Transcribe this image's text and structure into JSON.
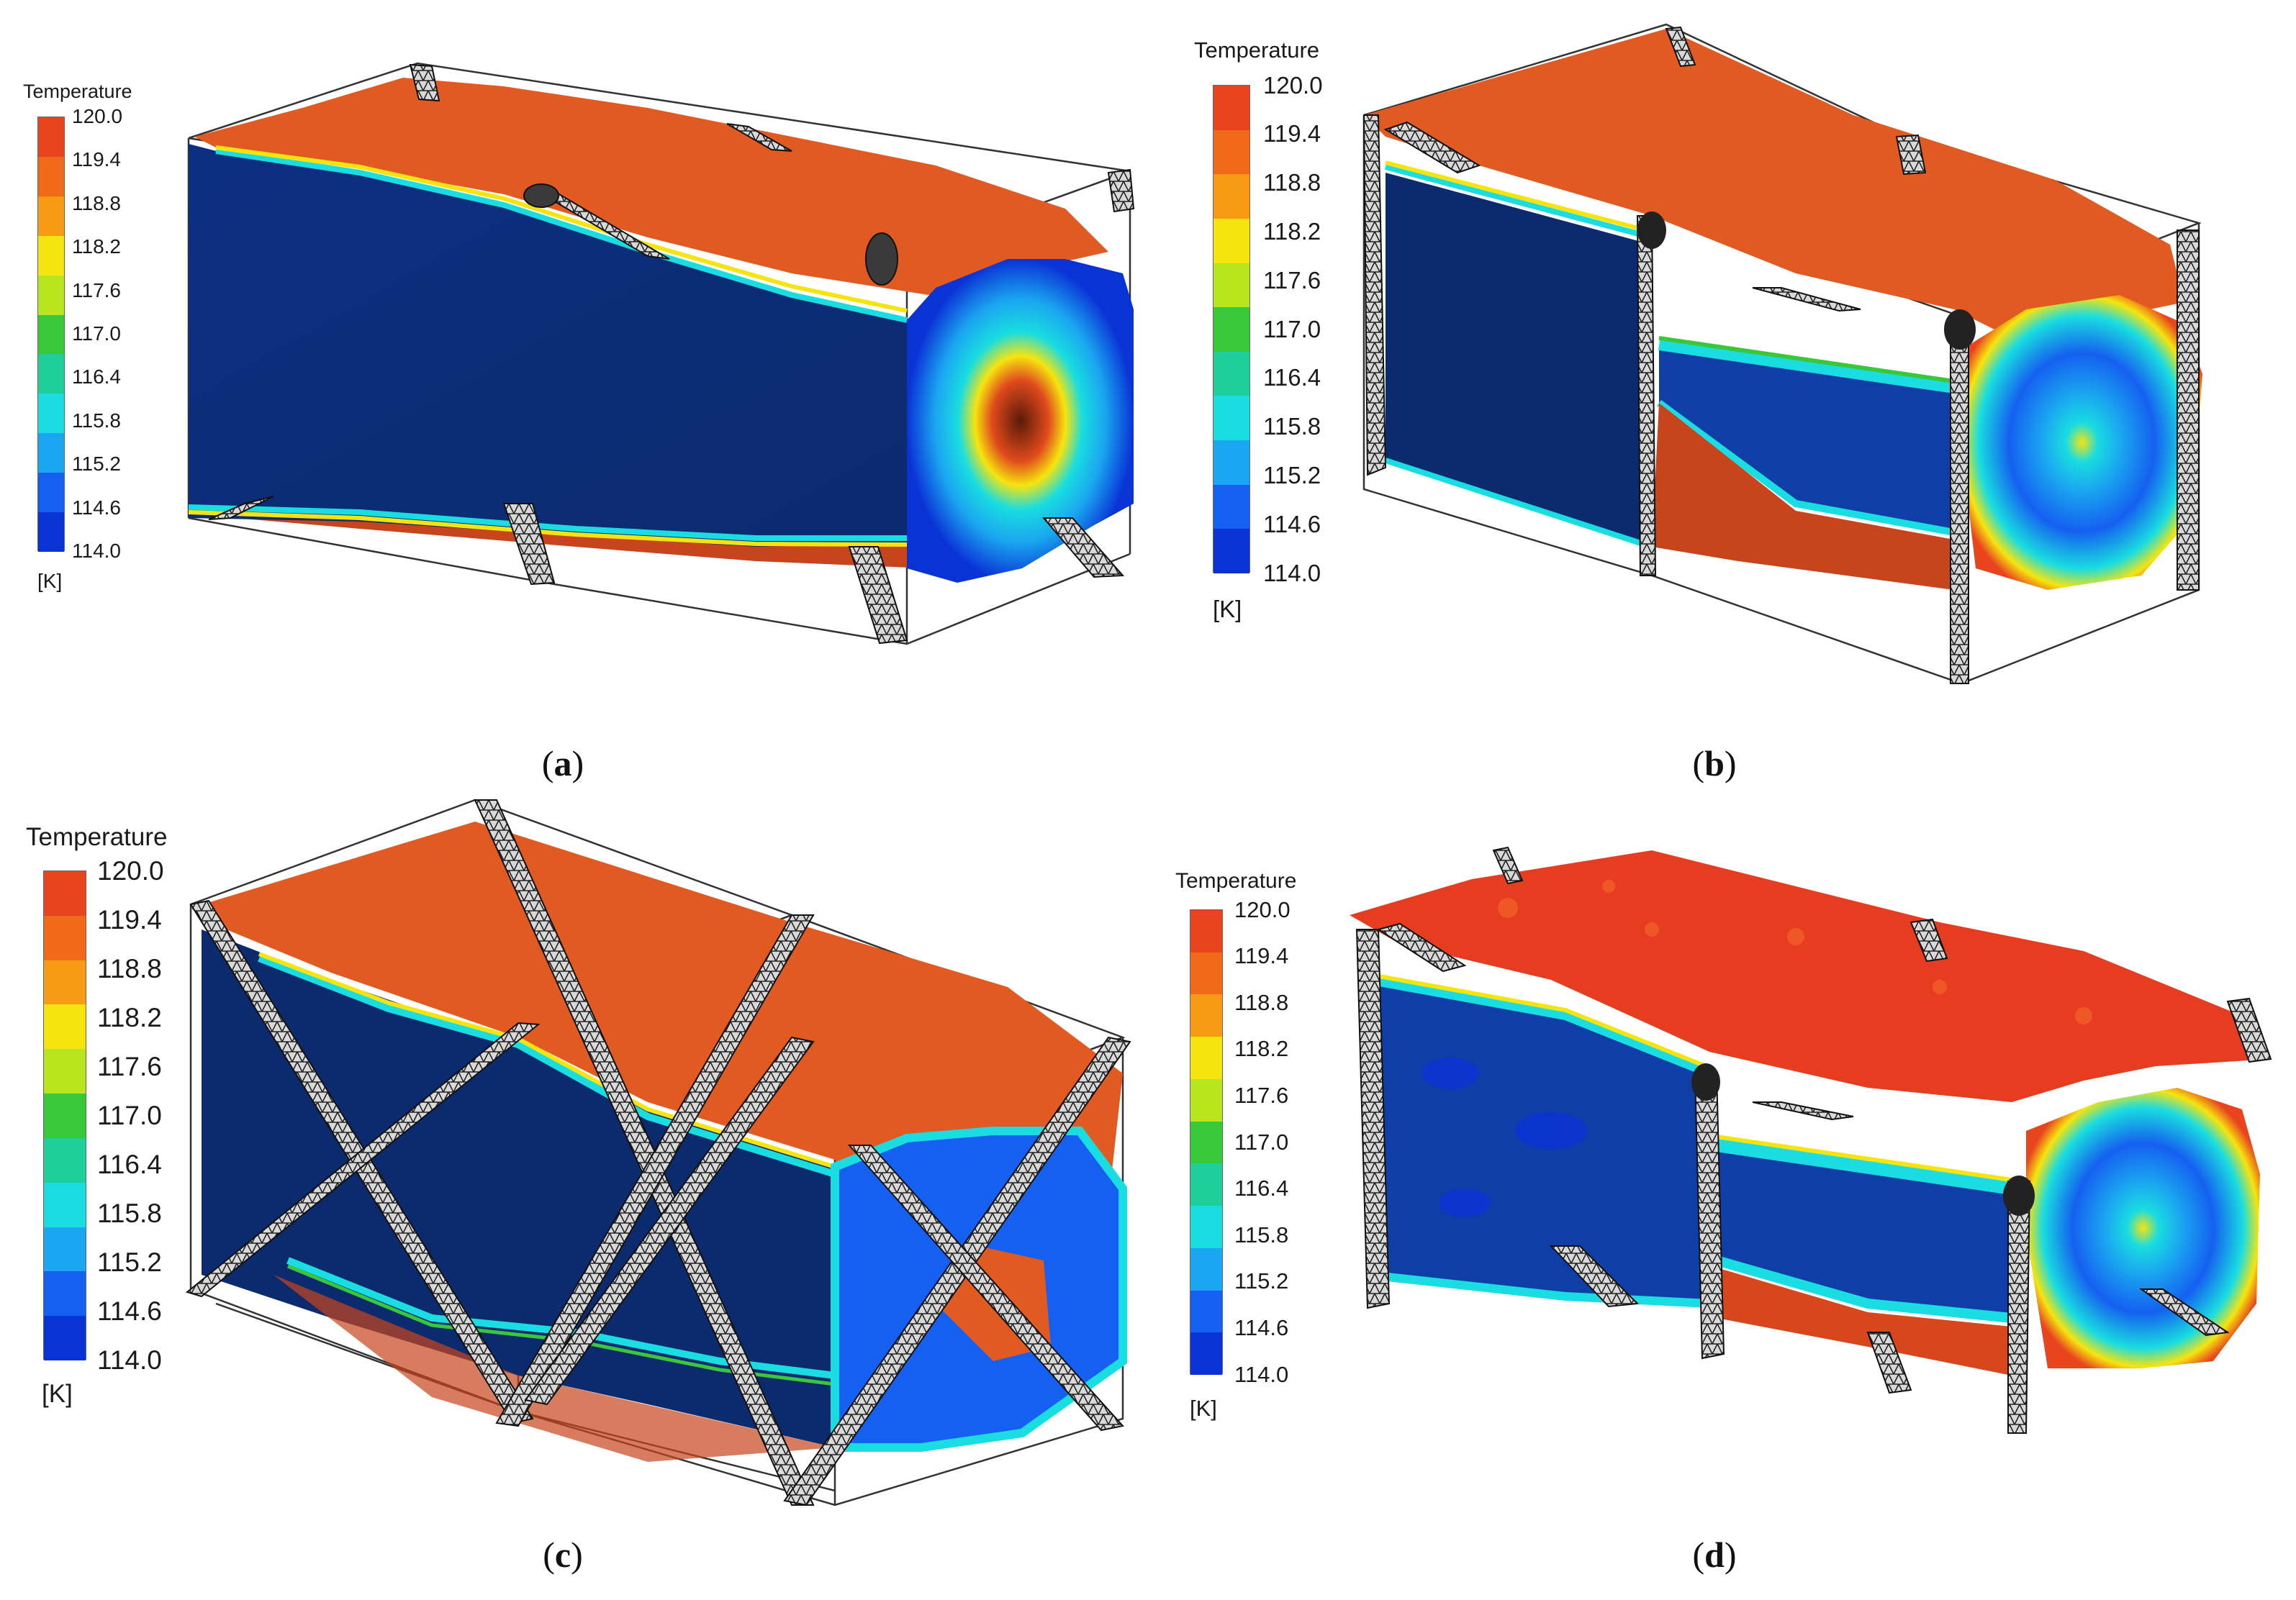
{
  "legend": {
    "title": "Temperature",
    "unit": "[K]",
    "ticks": [
      "120.0",
      "119.4",
      "118.8",
      "118.2",
      "117.6",
      "117.0",
      "116.4",
      "115.8",
      "115.2",
      "114.6",
      "114.0"
    ],
    "bands": [
      "#e8441e",
      "#f06a1a",
      "#f79a14",
      "#f6e40f",
      "#b8e61e",
      "#39c83a",
      "#1fcf9a",
      "#19dde0",
      "#1aa6f0",
      "#1560f0",
      "#0a33d6"
    ]
  },
  "colors": {
    "hot": "#e05a22",
    "cold_dark": "#0c2a6e",
    "cold_mid": "#0f3fa6",
    "strut": "#9a9a9a",
    "frame": "#333333"
  },
  "panels": [
    {
      "id": "a",
      "caption": "a"
    },
    {
      "id": "b",
      "caption": "b"
    },
    {
      "id": "c",
      "caption": "c"
    },
    {
      "id": "d",
      "caption": "d"
    }
  ]
}
